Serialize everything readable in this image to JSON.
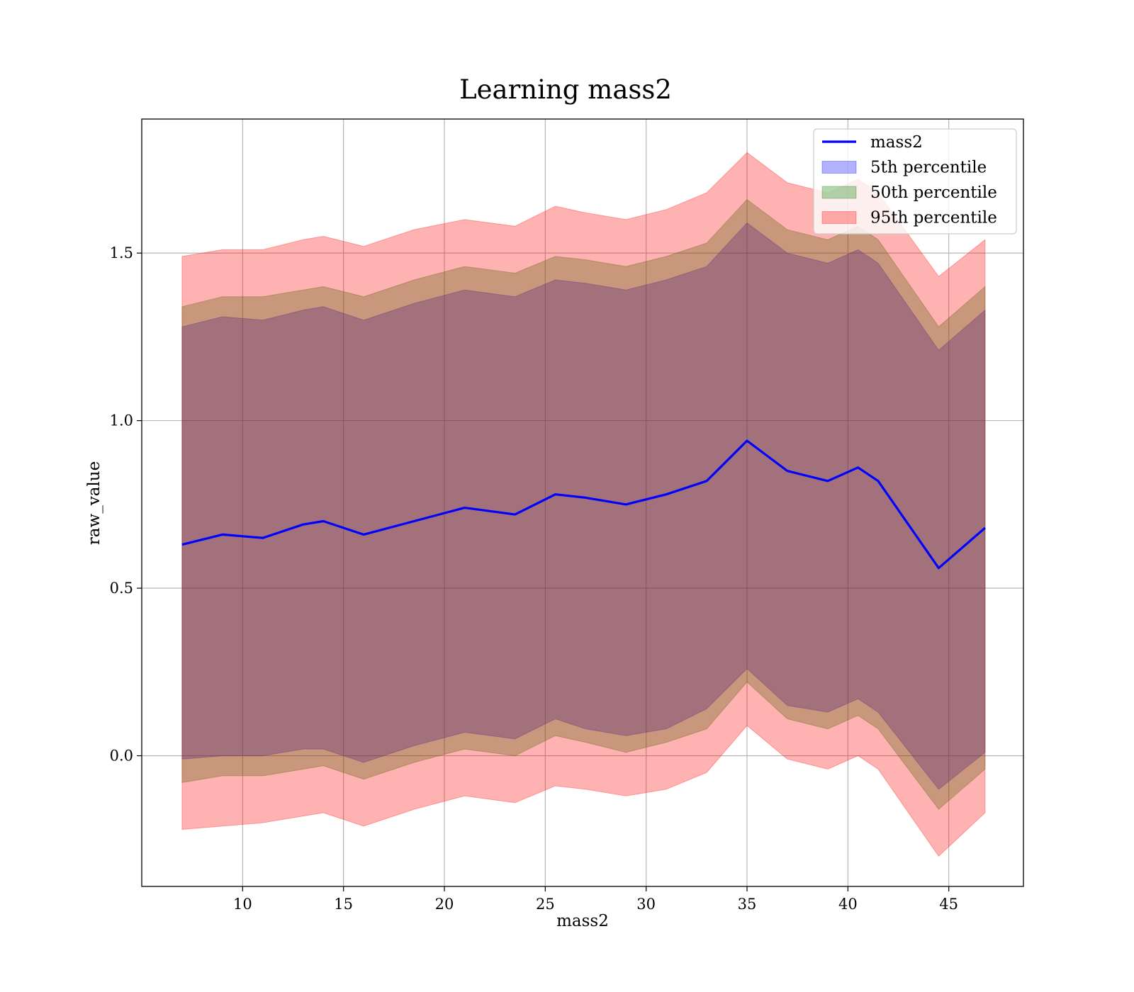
{
  "chart_data": {
    "type": "line",
    "title": "Learning mass2",
    "xlabel": "mass2",
    "ylabel": "raw_value",
    "xlim": [
      5.0,
      48.7
    ],
    "ylim": [
      -0.39,
      1.9
    ],
    "xticks": [
      10,
      15,
      20,
      25,
      30,
      35,
      40,
      45
    ],
    "yticks": [
      0.0,
      0.5,
      1.0,
      1.5
    ],
    "xtick_labels": [
      "10",
      "15",
      "20",
      "25",
      "30",
      "35",
      "40",
      "45"
    ],
    "ytick_labels": [
      "0.0",
      "0.5",
      "1.0",
      "1.5"
    ],
    "grid": true,
    "legend_position": "top-right",
    "x": [
      7.0,
      9.0,
      11.0,
      13.0,
      14.0,
      16.0,
      18.5,
      21.0,
      23.5,
      25.5,
      27.0,
      29.0,
      31.0,
      33.0,
      35.0,
      37.0,
      39.0,
      40.5,
      41.5,
      44.5,
      46.8
    ],
    "series": [
      {
        "name": "mass2",
        "kind": "line",
        "color": "#0000ff",
        "values": [
          0.63,
          0.66,
          0.65,
          0.69,
          0.7,
          0.66,
          0.7,
          0.74,
          0.72,
          0.78,
          0.77,
          0.75,
          0.78,
          0.82,
          0.94,
          0.85,
          0.82,
          0.86,
          0.82,
          0.56,
          0.68
        ]
      },
      {
        "name": "5th percentile",
        "kind": "band",
        "color": "#0000ff",
        "lower": [
          -0.01,
          0.0,
          0.0,
          0.02,
          0.02,
          -0.02,
          0.03,
          0.07,
          0.05,
          0.11,
          0.08,
          0.06,
          0.08,
          0.14,
          0.26,
          0.15,
          0.13,
          0.17,
          0.13,
          -0.1,
          0.01
        ],
        "upper": [
          1.28,
          1.31,
          1.3,
          1.33,
          1.34,
          1.3,
          1.35,
          1.39,
          1.37,
          1.42,
          1.41,
          1.39,
          1.42,
          1.46,
          1.59,
          1.5,
          1.47,
          1.51,
          1.47,
          1.21,
          1.33
        ]
      },
      {
        "name": "50th percentile",
        "kind": "band",
        "color": "#008000",
        "lower": [
          -0.08,
          -0.06,
          -0.06,
          -0.04,
          -0.03,
          -0.07,
          -0.02,
          0.02,
          0.0,
          0.06,
          0.04,
          0.01,
          0.04,
          0.08,
          0.22,
          0.11,
          0.08,
          0.12,
          0.08,
          -0.16,
          -0.04
        ],
        "upper": [
          1.34,
          1.37,
          1.37,
          1.39,
          1.4,
          1.37,
          1.42,
          1.46,
          1.44,
          1.49,
          1.48,
          1.46,
          1.49,
          1.53,
          1.66,
          1.57,
          1.54,
          1.58,
          1.54,
          1.28,
          1.4
        ]
      },
      {
        "name": "95th percentile",
        "kind": "band",
        "color": "#ff0000",
        "lower": [
          -0.22,
          -0.21,
          -0.2,
          -0.18,
          -0.17,
          -0.21,
          -0.16,
          -0.12,
          -0.14,
          -0.09,
          -0.1,
          -0.12,
          -0.1,
          -0.05,
          0.09,
          -0.01,
          -0.04,
          0.0,
          -0.04,
          -0.3,
          -0.17
        ],
        "upper": [
          1.49,
          1.51,
          1.51,
          1.54,
          1.55,
          1.52,
          1.57,
          1.6,
          1.58,
          1.64,
          1.62,
          1.6,
          1.63,
          1.68,
          1.8,
          1.71,
          1.68,
          1.72,
          1.68,
          1.43,
          1.54
        ]
      }
    ]
  }
}
